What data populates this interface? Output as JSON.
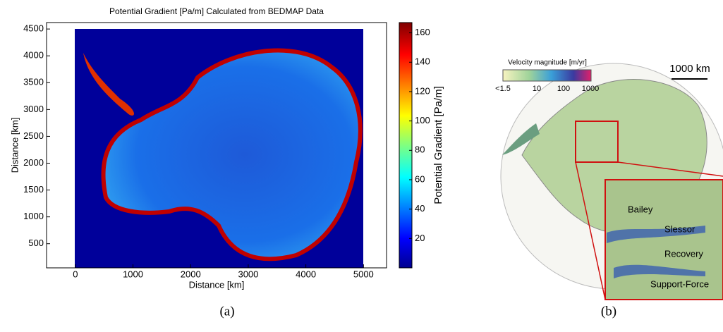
{
  "chart_data": {
    "type": "image",
    "title": "Potential Gradient [Pa/m] Calculated from BEDMAP Data",
    "x_label": "Distance [km]",
    "y_label": "Distance [km]",
    "xlim": [
      -500,
      5400
    ],
    "xticks": [
      0,
      1000,
      2000,
      3000,
      4000,
      5000
    ],
    "ylim": [
      50,
      4620
    ],
    "yticks": [
      500,
      1000,
      1500,
      2000,
      2500,
      3000,
      3500,
      4000,
      4500
    ],
    "colorbar": {
      "label": "Potential Gradient [Pa/m]",
      "lim": [
        0,
        167
      ],
      "ticks": [
        20,
        40,
        60,
        80,
        100,
        120,
        140,
        160
      ]
    },
    "caption": "(a)"
  },
  "panel_b": {
    "legend_title": "Velocity magnitude [m/yr]",
    "legend_ticks": [
      "<1.5",
      "10",
      "100",
      "1000"
    ],
    "scale_bar": "1000 km",
    "glaciers": [
      "Bailey",
      "Slessor",
      "Recovery",
      "Support-Force"
    ],
    "caption": "(b)"
  }
}
